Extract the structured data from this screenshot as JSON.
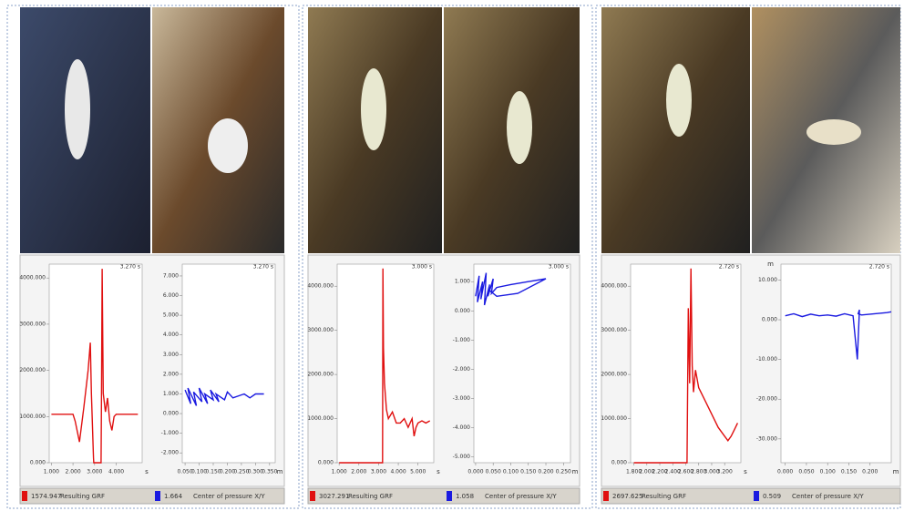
{
  "chart_data": [
    {
      "type": "line",
      "readout": "3.270 s",
      "x_unit": "s",
      "xlim": [
        0.9,
        5.2
      ],
      "ylim": [
        0,
        4300
      ],
      "xticks": [
        {
          "value": 1,
          "label": "1.000"
        },
        {
          "value": 2,
          "label": "2.000"
        },
        {
          "value": 3,
          "label": "3.000"
        },
        {
          "value": 4,
          "label": "4.000"
        }
      ],
      "yticks": [
        {
          "value": 0,
          "label": "0.000"
        },
        {
          "value": 1000,
          "label": "1000.000"
        },
        {
          "value": 2000,
          "label": "2000.000"
        },
        {
          "value": 3000,
          "label": "3000.000"
        },
        {
          "value": 4000,
          "label": "4000.000"
        }
      ],
      "legend_value": 1574.947,
      "series": [
        {
          "name": "Resulting GRF",
          "color": "#e01010",
          "x": [
            1,
            1.5,
            2.0,
            2.1,
            2.3,
            2.5,
            2.7,
            2.8,
            2.85,
            2.95,
            2.96,
            3.3,
            3.32,
            3.35,
            3.4,
            3.45,
            3.5,
            3.6,
            3.7,
            3.8,
            3.9,
            4.0,
            4.5,
            5.0
          ],
          "values": [
            1050,
            1050,
            1050,
            900,
            450,
            1200,
            2000,
            2600,
            1500,
            100,
            0,
            0,
            1500,
            4200,
            1500,
            1300,
            1100,
            1400,
            900,
            700,
            1000,
            1050,
            1050,
            1050
          ]
        }
      ]
    },
    {
      "type": "line",
      "readout": "3.270 s",
      "x_unit": "m",
      "xlim": [
        0.04,
        0.37
      ],
      "ylim": [
        -2.5,
        7.6
      ],
      "xticks": [
        {
          "value": 0.05,
          "label": "0.050"
        },
        {
          "value": 0.1,
          "label": "0.100"
        },
        {
          "value": 0.15,
          "label": "0.150"
        },
        {
          "value": 0.2,
          "label": "0.200"
        },
        {
          "value": 0.25,
          "label": "0.250"
        },
        {
          "value": 0.3,
          "label": "0.300"
        },
        {
          "value": 0.35,
          "label": "0.350"
        }
      ],
      "yticks": [
        {
          "value": 7,
          "label": "7.000"
        },
        {
          "value": 6,
          "label": "6.000"
        },
        {
          "value": 5,
          "label": "5.000"
        },
        {
          "value": 4,
          "label": "4.000"
        },
        {
          "value": 3,
          "label": "3.000"
        },
        {
          "value": 2,
          "label": "2.000"
        },
        {
          "value": 1,
          "label": "1.000"
        },
        {
          "value": 0,
          "label": "0.000"
        },
        {
          "value": -1,
          "label": "-1.000"
        },
        {
          "value": -2,
          "label": "-2.000"
        }
      ],
      "legend_value": 1.664,
      "series": [
        {
          "name": "Center of pressure X/Y",
          "color": "#1a1ae0",
          "x": [
            0.05,
            0.07,
            0.06,
            0.09,
            0.08,
            0.11,
            0.1,
            0.13,
            0.12,
            0.15,
            0.14,
            0.17,
            0.16,
            0.19,
            0.2,
            0.22,
            0.24,
            0.26,
            0.28,
            0.3,
            0.33
          ],
          "values": [
            1.2,
            0.5,
            1.3,
            0.4,
            1.1,
            0.6,
            1.3,
            0.5,
            1.0,
            0.7,
            1.2,
            0.6,
            1.0,
            0.7,
            1.1,
            0.8,
            0.9,
            1.0,
            0.8,
            1.0,
            1.0
          ]
        }
      ]
    },
    {
      "type": "line",
      "readout": "3.000 s",
      "x_unit": "s",
      "xlim": [
        0.9,
        5.8
      ],
      "ylim": [
        0,
        4500
      ],
      "xticks": [
        {
          "value": 1,
          "label": "1.000"
        },
        {
          "value": 2,
          "label": "2.000"
        },
        {
          "value": 3,
          "label": "3.000"
        },
        {
          "value": 4,
          "label": "4.000"
        },
        {
          "value": 5,
          "label": "5.000"
        }
      ],
      "yticks": [
        {
          "value": 0,
          "label": "0.000"
        },
        {
          "value": 1000,
          "label": "1000.000"
        },
        {
          "value": 2000,
          "label": "2000.000"
        },
        {
          "value": 3000,
          "label": "3000.000"
        },
        {
          "value": 4000,
          "label": "4000.000"
        }
      ],
      "legend_value": 3027.291,
      "series": [
        {
          "name": "Resulting GRF",
          "color": "#e01010",
          "x": [
            1,
            2,
            3,
            3.2,
            3.22,
            3.25,
            3.3,
            3.4,
            3.5,
            3.7,
            3.9,
            4.1,
            4.3,
            4.5,
            4.7,
            4.8,
            4.9,
            5.0,
            5.2,
            5.4,
            5.6
          ],
          "values": [
            0,
            0,
            0,
            0,
            4400,
            2600,
            1800,
            1200,
            1000,
            1150,
            900,
            900,
            1000,
            800,
            1000,
            600,
            800,
            900,
            950,
            900,
            950
          ]
        }
      ]
    },
    {
      "type": "line",
      "readout": "3.000 s",
      "x_unit": "m",
      "xlim": [
        -0.005,
        0.27
      ],
      "ylim": [
        -5.2,
        1.6
      ],
      "xticks": [
        {
          "value": 0,
          "label": "0.000"
        },
        {
          "value": 0.05,
          "label": "0.050"
        },
        {
          "value": 0.1,
          "label": "0.100"
        },
        {
          "value": 0.15,
          "label": "0.150"
        },
        {
          "value": 0.2,
          "label": "0.200"
        },
        {
          "value": 0.25,
          "label": "0.250"
        }
      ],
      "yticks": [
        {
          "value": 1,
          "label": "1.000"
        },
        {
          "value": 0,
          "label": "0.000"
        },
        {
          "value": -1,
          "label": "-1.000"
        },
        {
          "value": -2,
          "label": "-2.000"
        },
        {
          "value": -3,
          "label": "-3.000"
        },
        {
          "value": -4,
          "label": "-4.000"
        },
        {
          "value": -5,
          "label": "-5.000"
        }
      ],
      "legend_value": 1.058,
      "series": [
        {
          "name": "Center of pressure X/Y",
          "color": "#1a1ae0",
          "x": [
            0.0,
            0.01,
            0.005,
            0.02,
            0.015,
            0.03,
            0.025,
            0.04,
            0.035,
            0.05,
            0.045,
            0.06,
            0.1,
            0.15,
            0.2,
            0.12,
            0.06,
            0.04
          ],
          "values": [
            0.5,
            1.2,
            0.3,
            1.0,
            0.4,
            1.3,
            0.2,
            0.9,
            0.5,
            1.1,
            0.6,
            0.8,
            0.9,
            1.0,
            1.1,
            0.6,
            0.5,
            0.7
          ]
        }
      ]
    },
    {
      "type": "line",
      "readout": "2.720 s",
      "x_unit": "s",
      "xlim": [
        1.75,
        3.45
      ],
      "ylim": [
        0,
        4500
      ],
      "xticks": [
        {
          "value": 1.8,
          "label": "1.800"
        },
        {
          "value": 2.0,
          "label": "2.000"
        },
        {
          "value": 2.2,
          "label": "2.200"
        },
        {
          "value": 2.4,
          "label": "2.400"
        },
        {
          "value": 2.6,
          "label": "2.600"
        },
        {
          "value": 2.8,
          "label": "2.800"
        },
        {
          "value": 3.0,
          "label": "3.000"
        },
        {
          "value": 3.2,
          "label": "3.200"
        }
      ],
      "yticks": [
        {
          "value": 0,
          "label": "0.000"
        },
        {
          "value": 1000,
          "label": "1000.000"
        },
        {
          "value": 2000,
          "label": "2000.000"
        },
        {
          "value": 3000,
          "label": "3000.000"
        },
        {
          "value": 4000,
          "label": "4000.000"
        }
      ],
      "legend_value": 2697.625,
      "series": [
        {
          "name": "Resulting GRF",
          "color": "#e01010",
          "x": [
            1.8,
            2.0,
            2.2,
            2.4,
            2.6,
            2.62,
            2.64,
            2.66,
            2.68,
            2.7,
            2.72,
            2.75,
            2.8,
            2.9,
            3.0,
            3.1,
            3.2,
            3.25,
            3.3,
            3.35,
            3.4
          ],
          "values": [
            0,
            0,
            0,
            0,
            0,
            0,
            3500,
            1800,
            4400,
            2200,
            1600,
            2100,
            1700,
            1400,
            1100,
            800,
            600,
            500,
            600,
            750,
            900
          ]
        }
      ]
    },
    {
      "type": "line",
      "readout": "2.720 s",
      "x_unit": "m",
      "y_unit": "m",
      "xlim": [
        -0.01,
        0.25
      ],
      "ylim": [
        -36,
        14
      ],
      "xticks": [
        {
          "value": 0,
          "label": "0.000"
        },
        {
          "value": 0.05,
          "label": "0.050"
        },
        {
          "value": 0.1,
          "label": "0.100"
        },
        {
          "value": 0.15,
          "label": "0.150"
        },
        {
          "value": 0.2,
          "label": "0.200"
        }
      ],
      "yticks": [
        {
          "value": 10,
          "label": "10.000"
        },
        {
          "value": 0,
          "label": "0.000"
        },
        {
          "value": -10,
          "label": "-10.000"
        },
        {
          "value": -20,
          "label": "-20.000"
        },
        {
          "value": -30,
          "label": "-30.000"
        }
      ],
      "legend_value": 0.509,
      "series": [
        {
          "name": "Center of pressure X/Y",
          "color": "#1a1ae0",
          "x": [
            0,
            0.02,
            0.04,
            0.06,
            0.08,
            0.1,
            0.12,
            0.14,
            0.16,
            0.17,
            0.175,
            0.172,
            0.18,
            0.2,
            0.22,
            0.24,
            0.25
          ],
          "values": [
            1,
            1.5,
            0.8,
            1.4,
            1,
            1.2,
            0.9,
            1.5,
            1.0,
            -10,
            2.5,
            1.5,
            1.2,
            1.4,
            1.6,
            1.8,
            2
          ]
        }
      ]
    }
  ]
}
